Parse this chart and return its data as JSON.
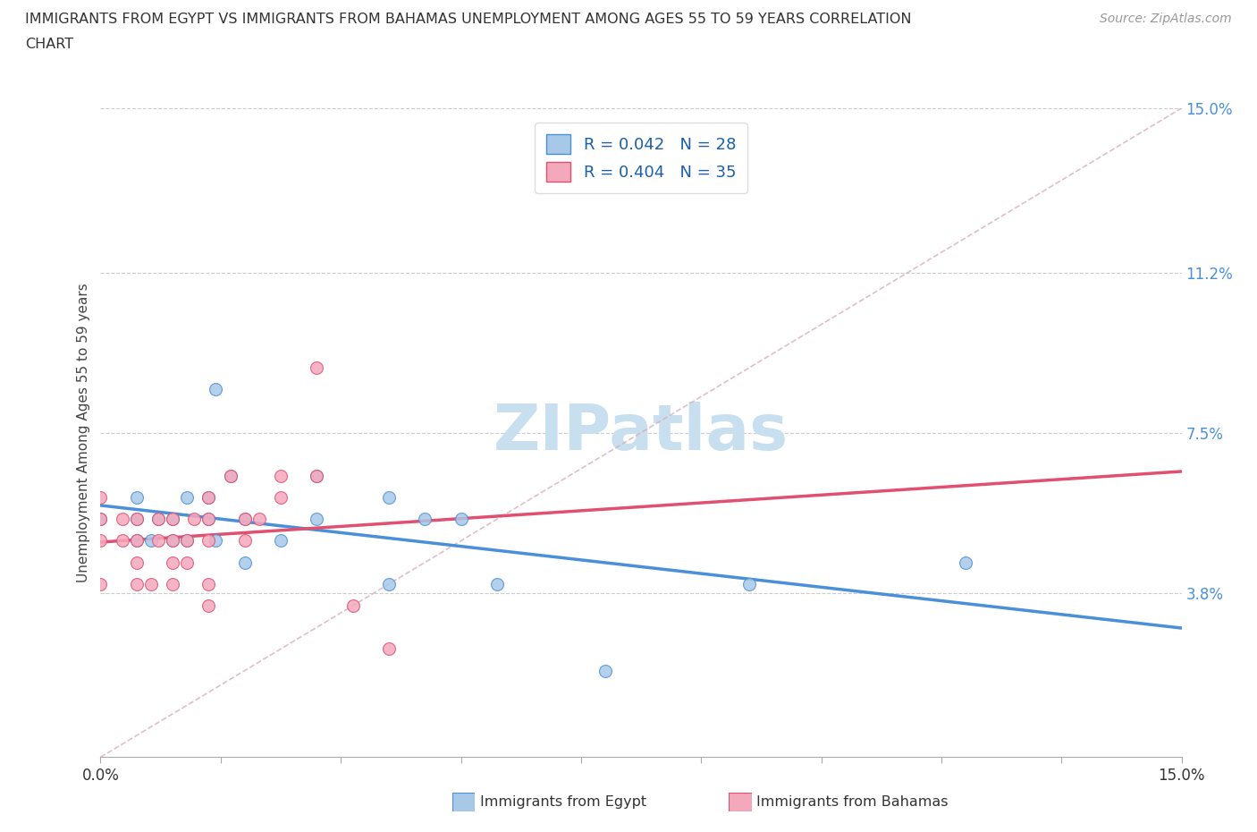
{
  "title_line1": "IMMIGRANTS FROM EGYPT VS IMMIGRANTS FROM BAHAMAS UNEMPLOYMENT AMONG AGES 55 TO 59 YEARS CORRELATION",
  "title_line2": "CHART",
  "source": "Source: ZipAtlas.com",
  "ylabel": "Unemployment Among Ages 55 to 59 years",
  "xlim": [
    0.0,
    0.15
  ],
  "ylim": [
    0.0,
    0.15
  ],
  "xtick_positions": [
    0.0,
    0.0167,
    0.0333,
    0.05,
    0.0667,
    0.0833,
    0.1,
    0.1167,
    0.1333,
    0.15
  ],
  "ytick_labels_right": [
    "15.0%",
    "11.2%",
    "7.5%",
    "3.8%"
  ],
  "ytick_values_right": [
    0.15,
    0.112,
    0.075,
    0.038
  ],
  "r_egypt": 0.042,
  "n_egypt": 28,
  "r_bahamas": 0.404,
  "n_bahamas": 35,
  "color_egypt": "#a8c8e8",
  "color_bahamas": "#f4a8bc",
  "line_color_egypt": "#4a90d9",
  "line_color_bahamas": "#e05070",
  "diagonal_color": "#d8b0b8",
  "watermark_color": "#c8dff0",
  "egypt_x": [
    0.0,
    0.005,
    0.005,
    0.005,
    0.007,
    0.008,
    0.01,
    0.01,
    0.012,
    0.012,
    0.015,
    0.015,
    0.016,
    0.016,
    0.018,
    0.02,
    0.02,
    0.025,
    0.03,
    0.03,
    0.04,
    0.04,
    0.045,
    0.05,
    0.055,
    0.07,
    0.09,
    0.12
  ],
  "egypt_y": [
    0.055,
    0.05,
    0.055,
    0.06,
    0.05,
    0.055,
    0.05,
    0.055,
    0.05,
    0.06,
    0.055,
    0.06,
    0.085,
    0.05,
    0.065,
    0.055,
    0.045,
    0.05,
    0.055,
    0.065,
    0.06,
    0.04,
    0.055,
    0.055,
    0.04,
    0.02,
    0.04,
    0.045
  ],
  "bahamas_x": [
    0.0,
    0.0,
    0.0,
    0.0,
    0.003,
    0.003,
    0.005,
    0.005,
    0.005,
    0.005,
    0.007,
    0.008,
    0.008,
    0.01,
    0.01,
    0.01,
    0.01,
    0.012,
    0.012,
    0.013,
    0.015,
    0.015,
    0.015,
    0.015,
    0.015,
    0.018,
    0.02,
    0.02,
    0.022,
    0.025,
    0.025,
    0.03,
    0.03,
    0.035,
    0.04
  ],
  "bahamas_y": [
    0.04,
    0.05,
    0.055,
    0.06,
    0.05,
    0.055,
    0.04,
    0.045,
    0.05,
    0.055,
    0.04,
    0.05,
    0.055,
    0.04,
    0.045,
    0.05,
    0.055,
    0.045,
    0.05,
    0.055,
    0.035,
    0.04,
    0.05,
    0.055,
    0.06,
    0.065,
    0.05,
    0.055,
    0.055,
    0.06,
    0.065,
    0.065,
    0.09,
    0.035,
    0.025
  ]
}
